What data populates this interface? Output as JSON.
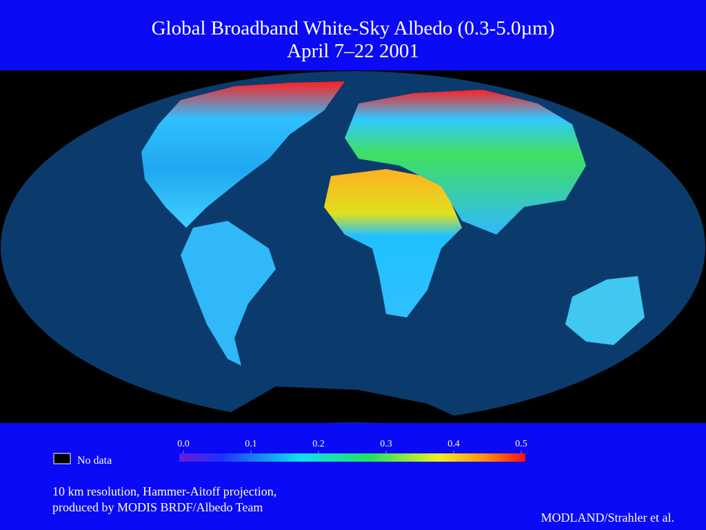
{
  "header": {
    "title": "Global Broadband White-Sky Albedo (0.3-5.0µm)",
    "subtitle": "April 7–22 2001"
  },
  "colorbar": {
    "ticks": [
      {
        "value": 0,
        "label": "0.0"
      },
      0.1,
      0.2,
      0.3,
      0.4,
      0.5
    ]
  },
  "legend": {
    "no_data": "No data"
  },
  "footer": {
    "note_line1": "10 km resolution, Hammer-Aitoff projection,",
    "note_line2": "produced by MODIS BRDF/Albedo Team",
    "credit": "MODLAND/Strahler et al."
  }
}
